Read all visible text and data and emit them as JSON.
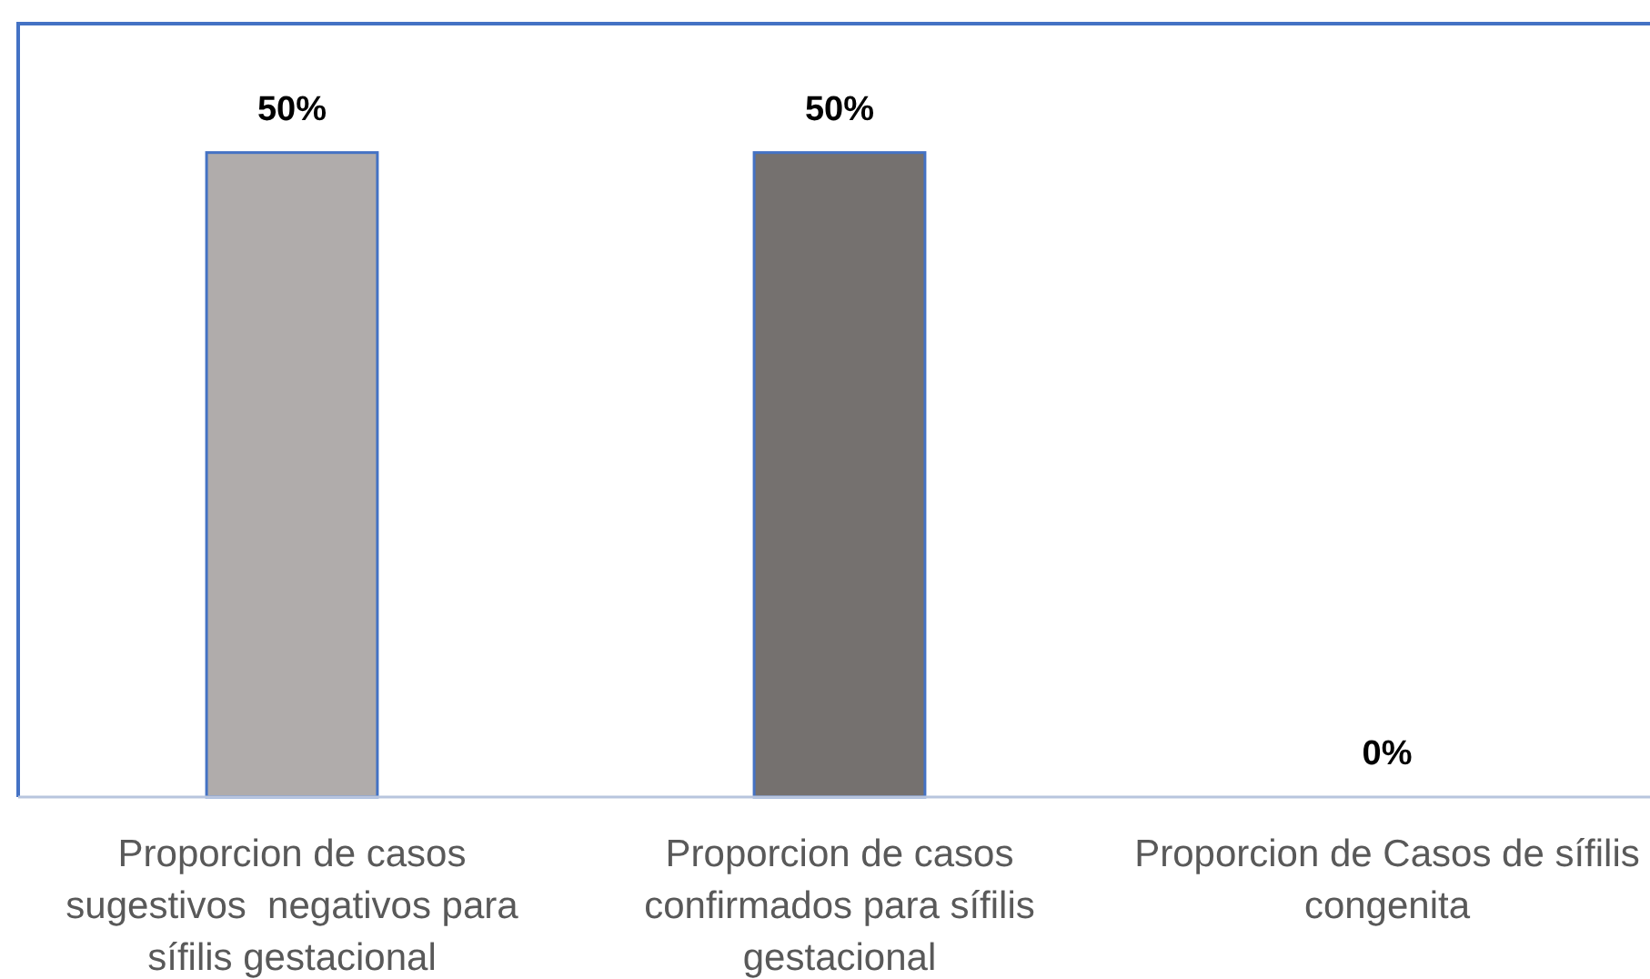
{
  "chart_data": {
    "type": "bar",
    "categories": [
      "Proporcion de casos sugestivos  negativos para sífilis gestacional",
      "Proporcion de casos confirmados para sífilis gestacional",
      "Proporcion de Casos de sífilis congenita"
    ],
    "values": [
      50,
      50,
      0
    ],
    "colors": [
      "#b0acab",
      "#75716f",
      null
    ],
    "ylim": [
      0,
      60
    ],
    "value_labels": [
      "50%",
      "50%",
      "0%"
    ]
  }
}
